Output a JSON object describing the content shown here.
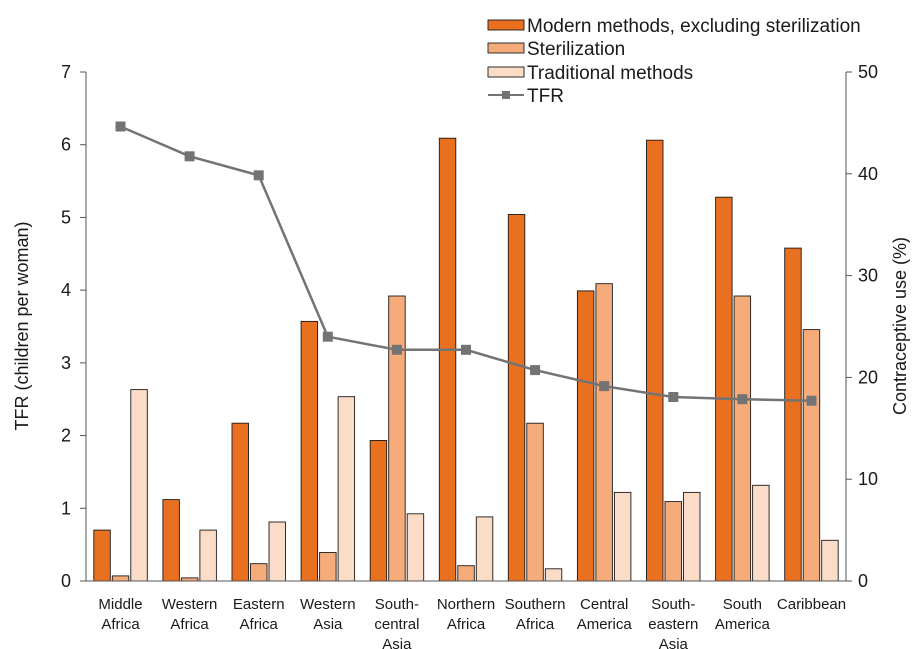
{
  "chart_data": {
    "type": "bar",
    "categories": [
      [
        "Middle",
        "Africa"
      ],
      [
        "Western",
        "Africa"
      ],
      [
        "Eastern",
        "Africa"
      ],
      [
        "Western",
        "Asia"
      ],
      [
        "South-",
        "central",
        "Asia"
      ],
      [
        "Northern",
        "Africa"
      ],
      [
        "Southern",
        "Africa"
      ],
      [
        "Central",
        "America"
      ],
      [
        "South-",
        "eastern",
        "Asia"
      ],
      [
        "South",
        "America"
      ],
      [
        "Caribbean"
      ]
    ],
    "series": [
      {
        "name": "Modern methods, excluding sterilization",
        "axis": "right",
        "kind": "bar",
        "color": "#e8701f",
        "values": [
          5.0,
          8.0,
          15.5,
          25.5,
          13.8,
          43.5,
          36.0,
          28.5,
          43.3,
          37.7,
          32.7
        ]
      },
      {
        "name": "Sterilization",
        "axis": "right",
        "kind": "bar",
        "color": "#f5ac7a",
        "values": [
          0.5,
          0.3,
          1.7,
          2.8,
          28.0,
          1.5,
          15.5,
          29.2,
          7.8,
          28.0,
          24.7
        ]
      },
      {
        "name": "Traditional methods",
        "axis": "right",
        "kind": "bar",
        "color": "#fbdcc6",
        "values": [
          18.8,
          5.0,
          5.8,
          18.1,
          6.6,
          6.3,
          1.2,
          8.7,
          8.7,
          9.4,
          4.0
        ]
      },
      {
        "name": "TFR",
        "axis": "left",
        "kind": "line",
        "color": "#737373",
        "values": [
          6.25,
          5.84,
          5.58,
          3.36,
          3.18,
          3.18,
          2.9,
          2.68,
          2.53,
          2.5,
          2.48
        ]
      }
    ],
    "ylabel": "TFR (children per woman)",
    "y2label": "Contraceptive use (%)",
    "ylim": [
      0,
      7
    ],
    "y2lim": [
      0,
      50
    ],
    "yticks": [
      "0",
      "1",
      "2",
      "3",
      "4",
      "5",
      "6",
      "7"
    ],
    "y2ticks": [
      "0",
      "10",
      "20",
      "30",
      "40",
      "50"
    ],
    "grid": false,
    "legend_position": "top-right"
  }
}
